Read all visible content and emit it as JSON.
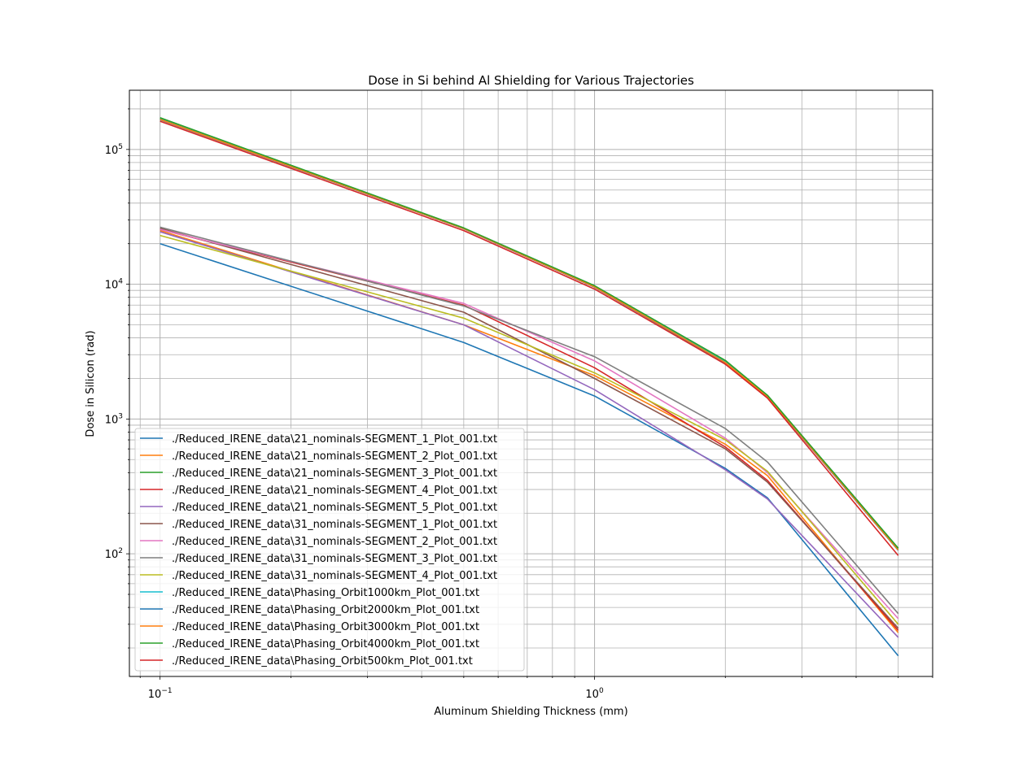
{
  "chart_data": {
    "type": "line",
    "title": "Dose in Si behind Al Shielding for Various Trajectories",
    "xlabel": "Aluminum Shielding Thickness (mm)",
    "ylabel": "Dose in Silicon (rad)",
    "xscale": "log",
    "yscale": "log",
    "xlim": [
      0.085,
      6.0
    ],
    "ylim": [
      12.3,
      275000
    ],
    "grid": "major and minor",
    "legend_position": "lower-left",
    "x_tick_labels": [
      {
        "value": 0.1,
        "base": "10",
        "exp": "−1"
      },
      {
        "value": 1,
        "base": "10",
        "exp": "0"
      }
    ],
    "y_tick_labels": [
      {
        "value": 100,
        "base": "10",
        "exp": "2"
      },
      {
        "value": 1000,
        "base": "10",
        "exp": "3"
      },
      {
        "value": 10000,
        "base": "10",
        "exp": "4"
      },
      {
        "value": 100000,
        "base": "10",
        "exp": "5"
      }
    ],
    "x": [
      0.1,
      0.5,
      1.0,
      2.0,
      2.5,
      5.0
    ],
    "series": [
      {
        "name": "./Reduced_IRENE_data\\21_nominals-SEGMENT_1_Plot_001.txt",
        "color": "#1f77b4",
        "values": [
          20000,
          3700,
          1480,
          430,
          260,
          17.5
        ]
      },
      {
        "name": "./Reduced_IRENE_data\\21_nominals-SEGMENT_2_Plot_001.txt",
        "color": "#ff7f0e",
        "values": [
          25000,
          5000,
          2100,
          650,
          380,
          26
        ]
      },
      {
        "name": "./Reduced_IRENE_data\\21_nominals-SEGMENT_3_Plot_001.txt",
        "color": "#2ca02c",
        "values": [
          170000,
          26000,
          9700,
          2700,
          1500,
          110
        ]
      },
      {
        "name": "./Reduced_IRENE_data\\21_nominals-SEGMENT_4_Plot_001.txt",
        "color": "#d62728",
        "values": [
          25500,
          7000,
          2400,
          620,
          350,
          27
        ]
      },
      {
        "name": "./Reduced_IRENE_data\\21_nominals-SEGMENT_5_Plot_001.txt",
        "color": "#9467bd",
        "values": [
          24500,
          5000,
          1650,
          420,
          255,
          24
        ]
      },
      {
        "name": "./Reduced_IRENE_data\\31_nominals-SEGMENT_1_Plot_001.txt",
        "color": "#8c564b",
        "values": [
          26000,
          6200,
          2000,
          600,
          340,
          28
        ]
      },
      {
        "name": "./Reduced_IRENE_data\\31_nominals-SEGMENT_2_Plot_001.txt",
        "color": "#e377c2",
        "values": [
          25500,
          7200,
          2700,
          720,
          400,
          33
        ]
      },
      {
        "name": "./Reduced_IRENE_data\\31_nominals-SEGMENT_3_Plot_001.txt",
        "color": "#7f7f7f",
        "values": [
          26500,
          6900,
          2900,
          850,
          480,
          36
        ]
      },
      {
        "name": "./Reduced_IRENE_data\\31_nominals-SEGMENT_4_Plot_001.txt",
        "color": "#bcbd22",
        "values": [
          23000,
          5600,
          2200,
          700,
          410,
          30
        ]
      },
      {
        "name": "./Reduced_IRENE_data\\Phasing_Orbit1000km_Plot_001.txt",
        "color": "#17becf",
        "values": [
          168000,
          26000,
          9600,
          2650,
          1480,
          108
        ]
      },
      {
        "name": "./Reduced_IRENE_data\\Phasing_Orbit2000km_Plot_001.txt",
        "color": "#1f77b4",
        "values": [
          166000,
          25800,
          9500,
          2600,
          1460,
          106
        ]
      },
      {
        "name": "./Reduced_IRENE_data\\Phasing_Orbit3000km_Plot_001.txt",
        "color": "#ff7f0e",
        "values": [
          167000,
          25900,
          9550,
          2620,
          1470,
          107
        ]
      },
      {
        "name": "./Reduced_IRENE_data\\Phasing_Orbit4000km_Plot_001.txt",
        "color": "#2ca02c",
        "values": [
          172000,
          26200,
          9750,
          2720,
          1500,
          110
        ]
      },
      {
        "name": "./Reduced_IRENE_data\\Phasing_Orbit500km_Plot_001.txt",
        "color": "#d62728",
        "values": [
          162000,
          25000,
          9200,
          2550,
          1430,
          97
        ]
      }
    ]
  }
}
